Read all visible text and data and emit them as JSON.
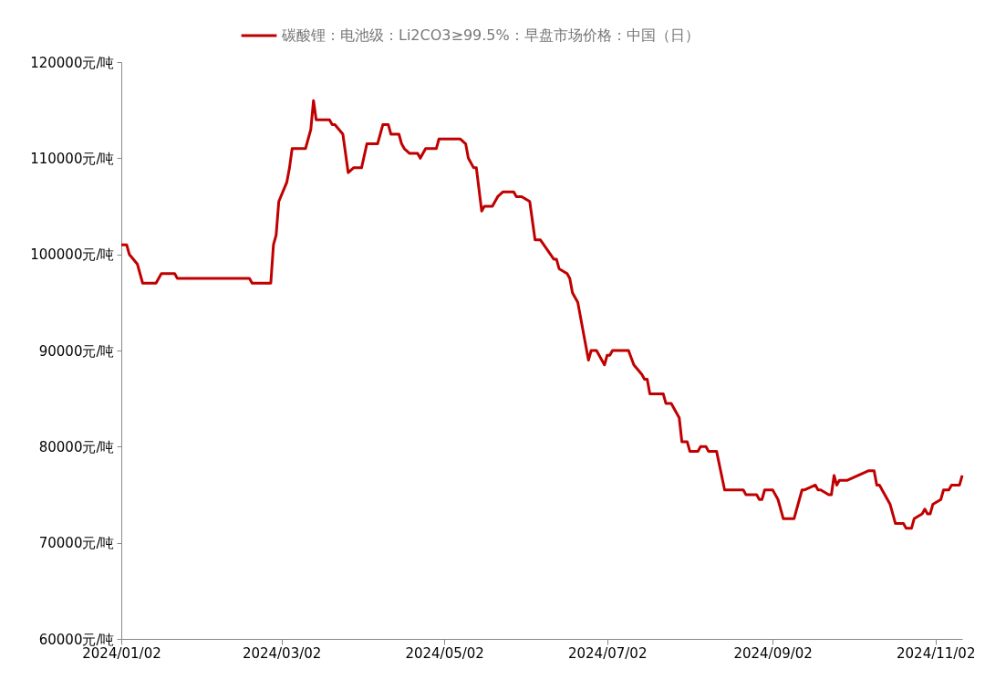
{
  "chart_data": {
    "type": "line",
    "legend": "top",
    "grid": false,
    "line_style": "solid",
    "x": [
      "2024-01-02",
      "2024-01-04",
      "2024-01-05",
      "2024-01-08",
      "2024-01-10",
      "2024-01-15",
      "2024-01-17",
      "2024-01-22",
      "2024-01-23",
      "2024-02-19",
      "2024-02-20",
      "2024-02-27",
      "2024-02-28",
      "2024-02-29",
      "2024-03-01",
      "2024-03-04",
      "2024-03-05",
      "2024-03-06",
      "2024-03-11",
      "2024-03-13",
      "2024-03-14",
      "2024-03-15",
      "2024-03-20",
      "2024-03-21",
      "2024-03-22",
      "2024-03-25",
      "2024-03-27",
      "2024-03-29",
      "2024-04-01",
      "2024-04-03",
      "2024-04-07",
      "2024-04-09",
      "2024-04-11",
      "2024-04-12",
      "2024-04-15",
      "2024-04-16",
      "2024-04-17",
      "2024-04-19",
      "2024-04-22",
      "2024-04-23",
      "2024-04-25",
      "2024-04-29",
      "2024-04-30",
      "2024-05-08",
      "2024-05-10",
      "2024-05-11",
      "2024-05-13",
      "2024-05-14",
      "2024-05-16",
      "2024-05-17",
      "2024-05-20",
      "2024-05-22",
      "2024-05-24",
      "2024-05-28",
      "2024-05-29",
      "2024-05-31",
      "2024-06-03",
      "2024-06-05",
      "2024-06-07",
      "2024-06-12",
      "2024-06-13",
      "2024-06-14",
      "2024-06-17",
      "2024-06-18",
      "2024-06-19",
      "2024-06-21",
      "2024-06-25",
      "2024-06-26",
      "2024-06-28",
      "2024-07-01",
      "2024-07-02",
      "2024-07-03",
      "2024-07-04",
      "2024-07-10",
      "2024-07-12",
      "2024-07-15",
      "2024-07-16",
      "2024-07-17",
      "2024-07-18",
      "2024-07-23",
      "2024-07-24",
      "2024-07-26",
      "2024-07-29",
      "2024-07-30",
      "2024-08-01",
      "2024-08-02",
      "2024-08-05",
      "2024-08-06",
      "2024-08-08",
      "2024-08-09",
      "2024-08-12",
      "2024-08-15",
      "2024-08-22",
      "2024-08-23",
      "2024-08-27",
      "2024-08-28",
      "2024-08-29",
      "2024-08-30",
      "2024-09-02",
      "2024-09-04",
      "2024-09-06",
      "2024-09-10",
      "2024-09-13",
      "2024-09-14",
      "2024-09-18",
      "2024-09-19",
      "2024-09-20",
      "2024-09-23",
      "2024-09-24",
      "2024-09-25",
      "2024-09-26",
      "2024-09-27",
      "2024-09-30",
      "2024-10-08",
      "2024-10-10",
      "2024-10-11",
      "2024-10-12",
      "2024-10-16",
      "2024-10-18",
      "2024-10-21",
      "2024-10-22",
      "2024-10-24",
      "2024-10-25",
      "2024-10-28",
      "2024-10-29",
      "2024-10-30",
      "2024-10-31",
      "2024-11-01",
      "2024-11-04",
      "2024-11-05",
      "2024-11-07",
      "2024-11-08",
      "2024-11-11",
      "2024-11-12"
    ],
    "series": [
      {
        "name": "碳酸锂：电池级：Li2CO3≥99.5%：早盘市场价格：中国（日）",
        "color": "#c00000",
        "values": [
          101000,
          101000,
          100000,
          99000,
          97000,
          97000,
          98000,
          98000,
          97500,
          97500,
          97000,
          97000,
          101000,
          102000,
          105500,
          107500,
          109000,
          111000,
          111000,
          113000,
          116000,
          114000,
          114000,
          113500,
          113500,
          112500,
          108500,
          109000,
          109000,
          111500,
          111500,
          113500,
          113500,
          112500,
          112500,
          111500,
          111000,
          110500,
          110500,
          110000,
          111000,
          111000,
          112000,
          112000,
          111500,
          110000,
          109000,
          109000,
          104500,
          105000,
          105000,
          106000,
          106500,
          106500,
          106000,
          106000,
          105500,
          101500,
          101500,
          99500,
          99500,
          98500,
          98000,
          97500,
          96000,
          95000,
          89000,
          90000,
          90000,
          88500,
          89500,
          89500,
          90000,
          90000,
          88500,
          87500,
          87000,
          87000,
          85500,
          85500,
          84500,
          84500,
          83000,
          80500,
          80500,
          79500,
          79500,
          80000,
          80000,
          79500,
          79500,
          75500,
          75500,
          75000,
          75000,
          74500,
          74500,
          75500,
          75500,
          74500,
          72500,
          72500,
          75500,
          75500,
          76000,
          75500,
          75500,
          75000,
          75000,
          77000,
          76000,
          76500,
          76500,
          77500,
          77500,
          76000,
          76000,
          74000,
          72000,
          72000,
          71500,
          71500,
          72500,
          73000,
          73500,
          73000,
          73000,
          74000,
          74500,
          75500,
          75500,
          76000,
          76000,
          77000
        ]
      }
    ],
    "xlim": [
      "2024-01-02",
      "2024-11-12"
    ],
    "xticks": [
      {
        "value": "2024-01-02",
        "label": "2024/01/02"
      },
      {
        "value": "2024-03-02",
        "label": "2024/03/02"
      },
      {
        "value": "2024-05-02",
        "label": "2024/05/02"
      },
      {
        "value": "2024-07-02",
        "label": "2024/07/02"
      },
      {
        "value": "2024-09-02",
        "label": "2024/09/02"
      },
      {
        "value": "2024-11-02",
        "label": "2024/11/02"
      }
    ],
    "ylim": [
      60000,
      120000
    ],
    "yticks": [
      {
        "value": 60000,
        "label": "60000元/吨"
      },
      {
        "value": 70000,
        "label": "70000元/吨"
      },
      {
        "value": 80000,
        "label": "80000元/吨"
      },
      {
        "value": 90000,
        "label": "90000元/吨"
      },
      {
        "value": 100000,
        "label": "100000元/吨"
      },
      {
        "value": 110000,
        "label": "110000元/吨"
      },
      {
        "value": 120000,
        "label": "120000元/吨"
      }
    ]
  }
}
